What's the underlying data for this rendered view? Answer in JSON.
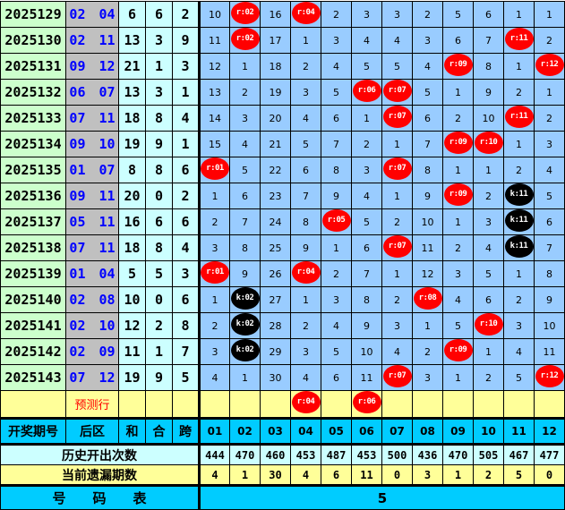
{
  "rows": [
    {
      "period": "2025129",
      "back": "02 04",
      "sum": "6",
      "he": "6",
      "span": "2",
      "cells": [
        "10",
        "r:02",
        "16",
        "r:04",
        "2",
        "3",
        "3",
        "2",
        "5",
        "6",
        "1",
        "1"
      ]
    },
    {
      "period": "2025130",
      "back": "02 11",
      "sum": "13",
      "he": "3",
      "span": "9",
      "cells": [
        "11",
        "r:02",
        "17",
        "1",
        "3",
        "4",
        "4",
        "3",
        "6",
        "7",
        "r:11",
        "2"
      ]
    },
    {
      "period": "2025131",
      "back": "09 12",
      "sum": "21",
      "he": "1",
      "span": "3",
      "cells": [
        "12",
        "1",
        "18",
        "2",
        "4",
        "5",
        "5",
        "4",
        "r:09",
        "8",
        "1",
        "r:12"
      ]
    },
    {
      "period": "2025132",
      "back": "06 07",
      "sum": "13",
      "he": "3",
      "span": "1",
      "cells": [
        "13",
        "2",
        "19",
        "3",
        "5",
        "r:06",
        "r:07",
        "5",
        "1",
        "9",
        "2",
        "1"
      ]
    },
    {
      "period": "2025133",
      "back": "07 11",
      "sum": "18",
      "he": "8",
      "span": "4",
      "cells": [
        "14",
        "3",
        "20",
        "4",
        "6",
        "1",
        "r:07",
        "6",
        "2",
        "10",
        "r:11",
        "2"
      ]
    },
    {
      "period": "2025134",
      "back": "09 10",
      "sum": "19",
      "he": "9",
      "span": "1",
      "cells": [
        "15",
        "4",
        "21",
        "5",
        "7",
        "2",
        "1",
        "7",
        "r:09",
        "r:10",
        "1",
        "3"
      ]
    },
    {
      "period": "2025135",
      "back": "01 07",
      "sum": "8",
      "he": "8",
      "span": "6",
      "cells": [
        "r:01",
        "5",
        "22",
        "6",
        "8",
        "3",
        "r:07",
        "8",
        "1",
        "1",
        "2",
        "4"
      ]
    },
    {
      "period": "2025136",
      "back": "09 11",
      "sum": "20",
      "he": "0",
      "span": "2",
      "cells": [
        "1",
        "6",
        "23",
        "7",
        "9",
        "4",
        "1",
        "9",
        "r:09",
        "2",
        "k:11",
        "5"
      ]
    },
    {
      "period": "2025137",
      "back": "05 11",
      "sum": "16",
      "he": "6",
      "span": "6",
      "cells": [
        "2",
        "7",
        "24",
        "8",
        "r:05",
        "5",
        "2",
        "10",
        "1",
        "3",
        "k:11",
        "6"
      ]
    },
    {
      "period": "2025138",
      "back": "07 11",
      "sum": "18",
      "he": "8",
      "span": "4",
      "cells": [
        "3",
        "8",
        "25",
        "9",
        "1",
        "6",
        "r:07",
        "11",
        "2",
        "4",
        "k:11",
        "7"
      ]
    },
    {
      "period": "2025139",
      "back": "01 04",
      "sum": "5",
      "he": "5",
      "span": "3",
      "cells": [
        "r:01",
        "9",
        "26",
        "r:04",
        "2",
        "7",
        "1",
        "12",
        "3",
        "5",
        "1",
        "8"
      ]
    },
    {
      "period": "2025140",
      "back": "02 08",
      "sum": "10",
      "he": "0",
      "span": "6",
      "cells": [
        "1",
        "k:02",
        "27",
        "1",
        "3",
        "8",
        "2",
        "r:08",
        "4",
        "6",
        "2",
        "9"
      ]
    },
    {
      "period": "2025141",
      "back": "02 10",
      "sum": "12",
      "he": "2",
      "span": "8",
      "cells": [
        "2",
        "k:02",
        "28",
        "2",
        "4",
        "9",
        "3",
        "1",
        "5",
        "r:10",
        "3",
        "10"
      ]
    },
    {
      "period": "2025142",
      "back": "02 09",
      "sum": "11",
      "he": "1",
      "span": "7",
      "cells": [
        "3",
        "k:02",
        "29",
        "3",
        "5",
        "10",
        "4",
        "2",
        "r:09",
        "1",
        "4",
        "11"
      ]
    },
    {
      "period": "2025143",
      "back": "07 12",
      "sum": "19",
      "he": "9",
      "span": "5",
      "cells": [
        "4",
        "1",
        "30",
        "4",
        "6",
        "11",
        "r:07",
        "3",
        "1",
        "2",
        "5",
        "r:12"
      ]
    }
  ],
  "prediction": {
    "label": "预测行",
    "cells": [
      "",
      "",
      "",
      "r:04",
      "",
      "r:06",
      "",
      "",
      "",
      "",
      "",
      ""
    ]
  },
  "header": {
    "period": "开奖期号",
    "back": "后区",
    "sum": "和",
    "he": "合",
    "span": "跨",
    "numbers": [
      "01",
      "02",
      "03",
      "04",
      "05",
      "06",
      "07",
      "08",
      "09",
      "10",
      "11",
      "12"
    ]
  },
  "history": {
    "label": "历史开出次数",
    "values": [
      "444",
      "470",
      "460",
      "453",
      "487",
      "453",
      "500",
      "436",
      "470",
      "505",
      "467",
      "477"
    ]
  },
  "miss": {
    "label": "当前遗漏期数",
    "values": [
      "4",
      "1",
      "30",
      "4",
      "6",
      "11",
      "0",
      "3",
      "1",
      "2",
      "5",
      "0"
    ]
  },
  "footer": {
    "label": "号　　码　　表",
    "value": "5"
  },
  "colors": {
    "ball_red": "#ff0000",
    "ball_black": "#000000",
    "grid": "#99ccff",
    "header": "#00ccff",
    "prediction": "#ffff99"
  }
}
